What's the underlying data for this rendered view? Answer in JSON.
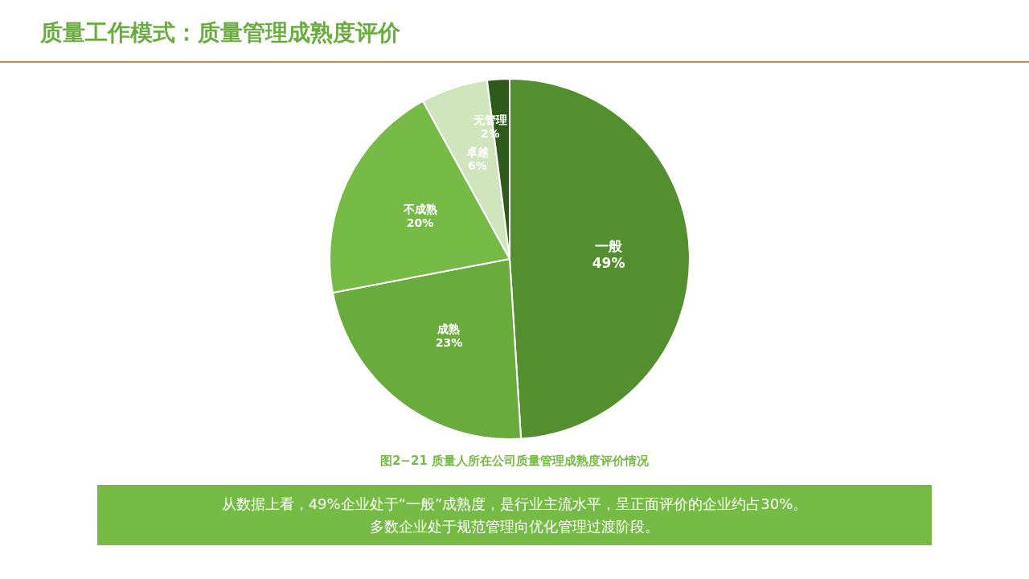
{
  "chart_data": {
    "type": "pie",
    "title": "质量工作模式：质量管理成熟度评价",
    "categories": [
      "一般",
      "成熟",
      "不成熟",
      "卓越",
      "无管理"
    ],
    "values": [
      49,
      23,
      20,
      6,
      2
    ],
    "colors": [
      "#548f2f",
      "#6aab3d",
      "#76bb45",
      "#cfe6bc",
      "#2e5a1c"
    ],
    "value_labels": [
      "49%",
      "23%",
      "20%",
      "6%",
      "2%"
    ],
    "legend": false,
    "annotations": [
      "图2−21  质量人所在公司质量管理成熟度评价情况",
      "从数据上看，49%企业处于“一般”成熟度，是行业主流水平，呈正面评价的企业约占30%。",
      "多数企业处于规范管理向优化管理过渡阶段。"
    ]
  }
}
